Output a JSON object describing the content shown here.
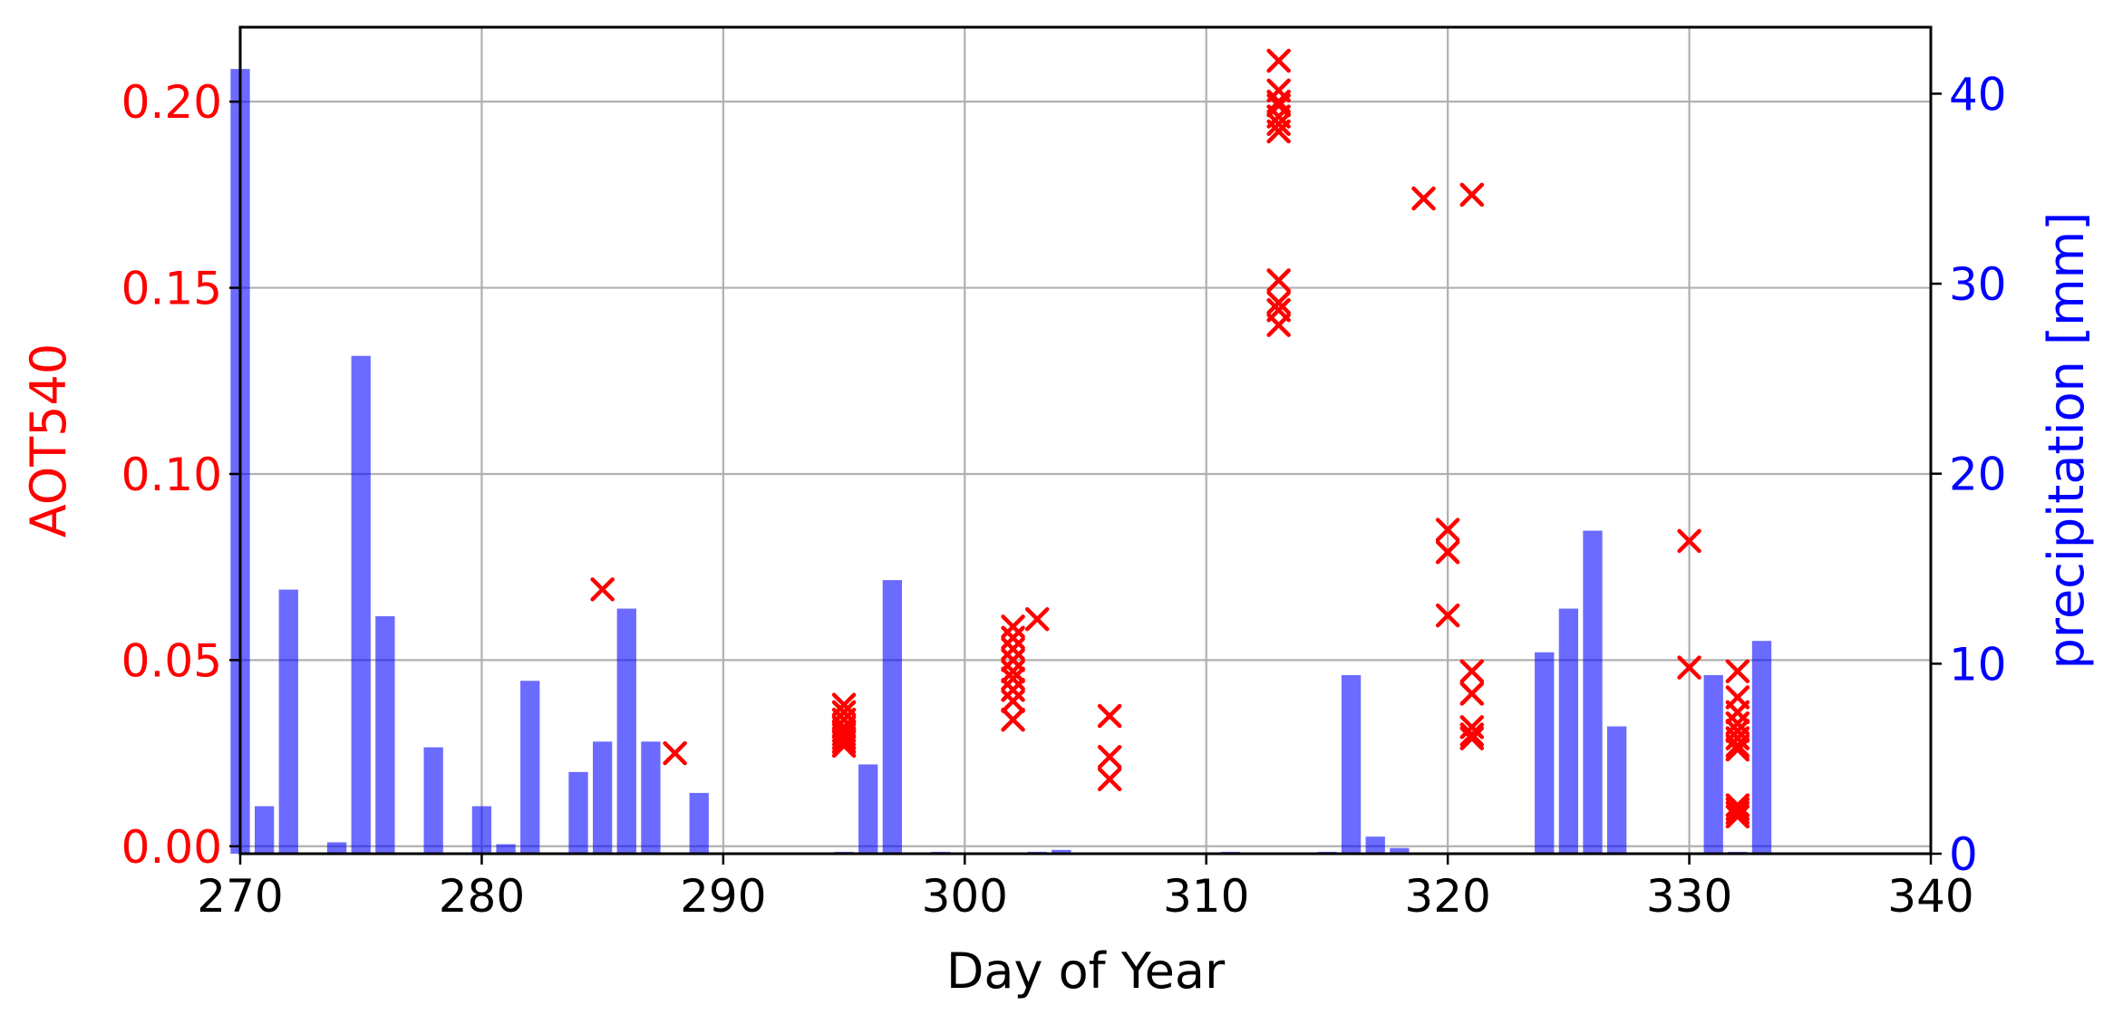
{
  "chart_data": {
    "type": "bar+scatter",
    "title": "",
    "xlabel": "Day of Year",
    "ylabel": "AOT540",
    "y2label": "precipitation [mm]",
    "xlim": [
      270,
      340
    ],
    "ylim": [
      -0.002,
      0.22
    ],
    "y2lim": [
      0,
      43.5
    ],
    "xticks": [
      "270",
      "280",
      "290",
      "300",
      "310",
      "320",
      "330",
      "340"
    ],
    "yticks": [
      "0.00",
      "0.05",
      "0.10",
      "0.15",
      "0.20"
    ],
    "y2ticks": [
      "0",
      "10",
      "20",
      "30",
      "40"
    ],
    "grid": true,
    "colors": {
      "aot": "#ff0000",
      "precip": "#0000ff",
      "bar_alpha": 0.58,
      "grid": "#b0b0b0"
    },
    "series": [
      {
        "name": "precipitation",
        "axis": "right",
        "kind": "bar",
        "x": [
          270,
          271,
          272,
          274,
          275,
          276,
          278,
          280,
          281,
          282,
          284,
          285,
          286,
          287,
          289,
          295,
          296,
          297,
          299,
          303,
          304,
          311,
          315,
          316,
          317,
          318,
          324,
          325,
          326,
          327,
          331,
          332,
          333
        ],
        "values": [
          41.3,
          2.5,
          13.9,
          0.6,
          26.2,
          12.5,
          5.6,
          2.5,
          0.5,
          9.1,
          4.3,
          5.9,
          12.9,
          5.9,
          3.2,
          0.1,
          4.7,
          14.4,
          0.1,
          0.1,
          0.2,
          0.1,
          0.1,
          9.4,
          0.9,
          0.3,
          10.6,
          12.9,
          17.0,
          6.7,
          9.4,
          0.1,
          11.2
        ]
      },
      {
        "name": "AOT540",
        "axis": "left",
        "kind": "scatter",
        "x": [
          285,
          288,
          295,
          295,
          295,
          295,
          295,
          295,
          295,
          295,
          295,
          302,
          302,
          302,
          302,
          302,
          302,
          302,
          302,
          302,
          303,
          306,
          306,
          306,
          313,
          313,
          313,
          313,
          313,
          313,
          313,
          313,
          313,
          313,
          313,
          319,
          320,
          320,
          320,
          321,
          321,
          321,
          321,
          321,
          321,
          330,
          330,
          332,
          332,
          332,
          332,
          332,
          332,
          332,
          332,
          332,
          332,
          332,
          332
        ],
        "values": [
          0.069,
          0.025,
          0.038,
          0.036,
          0.034,
          0.032,
          0.031,
          0.03,
          0.029,
          0.028,
          0.027,
          0.059,
          0.056,
          0.053,
          0.05,
          0.047,
          0.045,
          0.042,
          0.039,
          0.034,
          0.061,
          0.035,
          0.024,
          0.018,
          0.211,
          0.203,
          0.199,
          0.196,
          0.194,
          0.192,
          0.152,
          0.146,
          0.144,
          0.14,
          0.2,
          0.174,
          0.085,
          0.079,
          0.062,
          0.175,
          0.047,
          0.041,
          0.032,
          0.029,
          0.03,
          0.082,
          0.048,
          0.047,
          0.04,
          0.036,
          0.033,
          0.031,
          0.029,
          0.027,
          0.026,
          0.011,
          0.009,
          0.008,
          0.01
        ]
      }
    ]
  }
}
